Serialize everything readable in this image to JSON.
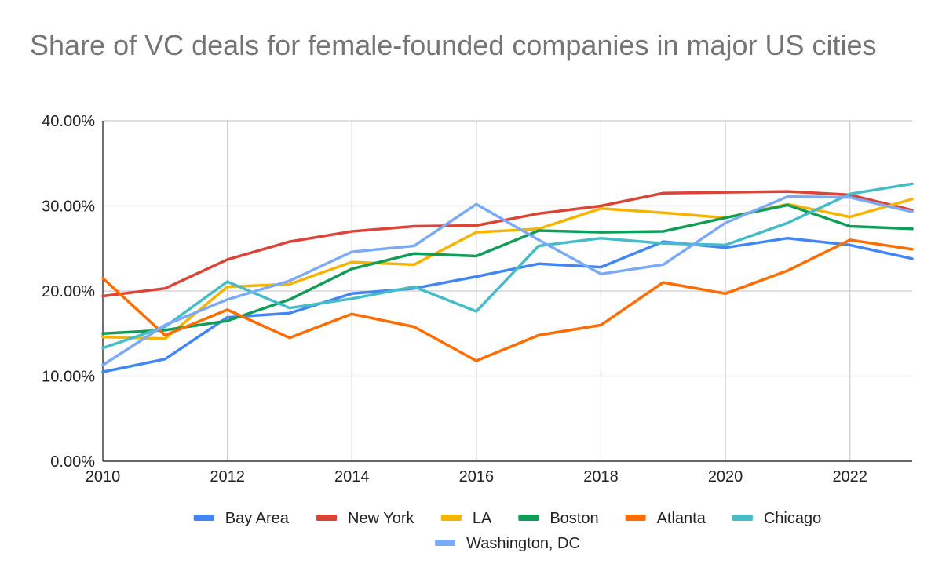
{
  "chart_data": {
    "type": "line",
    "title": "Share of VC deals for female-founded companies in major US cities",
    "xlabel": "",
    "ylabel": "",
    "xlim": [
      2010,
      2023
    ],
    "ylim": [
      0,
      40
    ],
    "x": [
      2010,
      2011,
      2012,
      2013,
      2014,
      2015,
      2016,
      2017,
      2018,
      2019,
      2020,
      2021,
      2022,
      2023
    ],
    "x_ticks": [
      2010,
      2012,
      2014,
      2016,
      2018,
      2020,
      2022
    ],
    "x_tick_labels": [
      "2010",
      "2012",
      "2014",
      "2016",
      "2018",
      "2020",
      "2022"
    ],
    "y_ticks": [
      0,
      10,
      20,
      30,
      40
    ],
    "y_tick_labels": [
      "0.00%",
      "10.00%",
      "20.00%",
      "30.00%",
      "40.00%"
    ],
    "grid": true,
    "legend_position": "bottom",
    "series": [
      {
        "name": "Bay Area",
        "color": "#4285F4",
        "values": [
          10.5,
          12.0,
          16.9,
          17.4,
          19.7,
          20.3,
          21.7,
          23.2,
          22.8,
          25.8,
          25.1,
          26.2,
          25.4,
          23.8
        ]
      },
      {
        "name": "New York",
        "color": "#DB4437",
        "values": [
          19.4,
          20.3,
          23.7,
          25.8,
          27.0,
          27.6,
          27.7,
          29.1,
          30.0,
          31.5,
          31.6,
          31.7,
          31.3,
          29.5
        ]
      },
      {
        "name": "LA",
        "color": "#F4B400",
        "values": [
          14.6,
          14.4,
          20.5,
          20.8,
          23.4,
          23.1,
          26.9,
          27.3,
          29.7,
          29.2,
          28.6,
          30.2,
          28.7,
          30.8
        ]
      },
      {
        "name": "Boston",
        "color": "#0F9D58",
        "values": [
          15.0,
          15.4,
          16.5,
          19.0,
          22.6,
          24.4,
          24.1,
          27.1,
          26.9,
          27.0,
          28.6,
          30.1,
          27.6,
          27.3
        ]
      },
      {
        "name": "Atlanta",
        "color": "#FF6D01",
        "values": [
          21.5,
          14.8,
          17.8,
          14.5,
          17.3,
          15.8,
          11.8,
          14.8,
          16.0,
          21.0,
          19.7,
          22.4,
          26.0,
          24.9
        ]
      },
      {
        "name": "Chicago",
        "color": "#46BDC6",
        "values": [
          13.3,
          15.8,
          21.1,
          18.0,
          19.1,
          20.5,
          17.6,
          25.3,
          26.2,
          25.6,
          25.4,
          28.0,
          31.4,
          32.6
        ]
      },
      {
        "name": "Washington, DC",
        "color": "#7BAAF7",
        "values": [
          11.3,
          16.0,
          19.0,
          21.2,
          24.6,
          25.3,
          30.2,
          26.0,
          22.0,
          23.1,
          28.0,
          31.1,
          31.0,
          29.3
        ]
      }
    ]
  }
}
